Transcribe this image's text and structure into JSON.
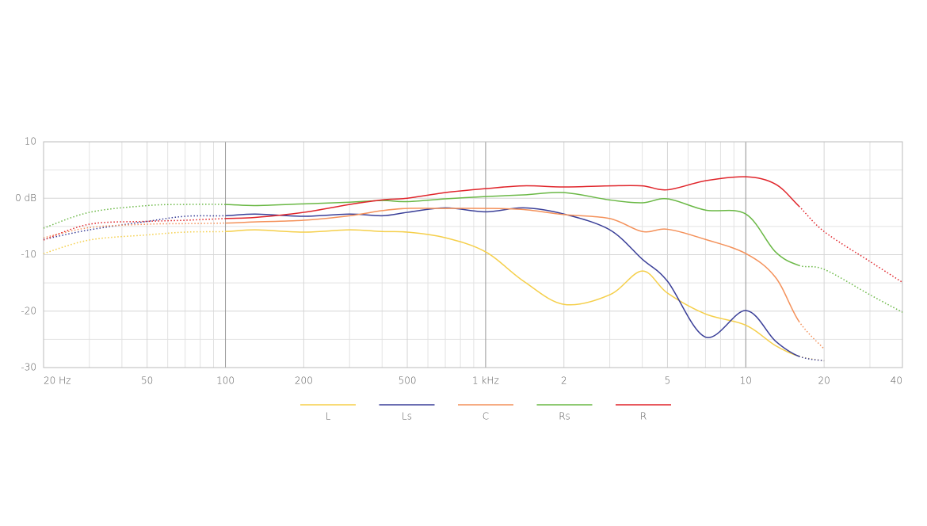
{
  "chart_data": {
    "type": "line",
    "x_scale": "log",
    "grid": true,
    "x": [
      20,
      30,
      50,
      70,
      100,
      130,
      200,
      300,
      400,
      500,
      700,
      1000,
      1400,
      2000,
      3000,
      4000,
      5000,
      7000,
      10000,
      13000,
      16000,
      20000,
      30000,
      40000
    ],
    "solid_x": [
      100,
      16000
    ],
    "xlim": [
      20,
      40000
    ],
    "xticks": [
      {
        "value": 20,
        "label": "20 Hz"
      },
      50,
      100,
      200,
      500,
      {
        "value": 1000,
        "label": "1 kHz"
      },
      {
        "value": 2000,
        "label": "2"
      },
      {
        "value": 5000,
        "label": "5"
      },
      {
        "value": 10000,
        "label": "10"
      },
      {
        "value": 20000,
        "label": "20"
      },
      {
        "value": 40000,
        "label": "40"
      }
    ],
    "xgrid": [
      30,
      40,
      60,
      70,
      80,
      90,
      300,
      400,
      600,
      700,
      800,
      900,
      3000,
      4000,
      6000,
      7000,
      8000,
      9000,
      30000
    ],
    "xmajor": [
      100,
      1000,
      10000
    ],
    "ylim": [
      -30,
      10
    ],
    "yticks": [
      10,
      {
        "value": 0,
        "label": "0 dB"
      },
      -10,
      -20,
      -30
    ],
    "ygrid": [
      5,
      -5,
      -15,
      -25
    ],
    "series": [
      {
        "name": "L",
        "color": "#f5cf4a",
        "values": [
          -9.8,
          -7.4,
          -6.5,
          -6,
          -5.9,
          -5.6,
          -6,
          -5.6,
          -5.9,
          -6,
          -7,
          -9.5,
          -14.7,
          -18.8,
          -17.1,
          -12.9,
          -16.8,
          -20.5,
          -22.5,
          -26.1,
          -28,
          -28.8,
          null,
          null
        ]
      },
      {
        "name": "Ls",
        "color": "#3a3f98",
        "values": [
          -7.3,
          -5.6,
          -4.1,
          -3.2,
          -3.1,
          -2.8,
          -3.2,
          -2.8,
          -3.1,
          -2.5,
          -1.7,
          -2.4,
          -1.7,
          -2.8,
          -5.6,
          -10.8,
          -14.7,
          -24.6,
          -19.9,
          -25.3,
          -28,
          -28.8,
          null,
          null
        ]
      },
      {
        "name": "C",
        "color": "#f4915a",
        "values": [
          -7,
          -5.2,
          -4.6,
          -4.5,
          -4.4,
          -4.2,
          -3.9,
          -3.1,
          -2.2,
          -1.8,
          -1.8,
          -1.8,
          -2,
          -2.9,
          -3.6,
          -5.9,
          -5.5,
          -7.3,
          -9.8,
          -14,
          -21.8,
          -26.7,
          null,
          null
        ]
      },
      {
        "name": "Rs",
        "color": "#6ab845",
        "values": [
          -5.3,
          -2.5,
          -1.3,
          -1.1,
          -1.1,
          -1.3,
          -1,
          -0.7,
          -0.4,
          -0.6,
          -0.1,
          0.3,
          0.6,
          1,
          -0.3,
          -0.8,
          -0.1,
          -2.1,
          -2.8,
          -9.5,
          -11.9,
          -12.6,
          -17.1,
          -20.2
        ]
      },
      {
        "name": "R",
        "color": "#e0242a",
        "values": [
          -7.4,
          -4.6,
          -4.1,
          -3.9,
          -3.6,
          -3.4,
          -2.5,
          -1.1,
          -0.3,
          0,
          1,
          1.7,
          2.2,
          2,
          2.2,
          2.2,
          1.5,
          3.1,
          3.8,
          2.5,
          -1.4,
          -5.9,
          -11.2,
          -14.9
        ]
      }
    ]
  }
}
